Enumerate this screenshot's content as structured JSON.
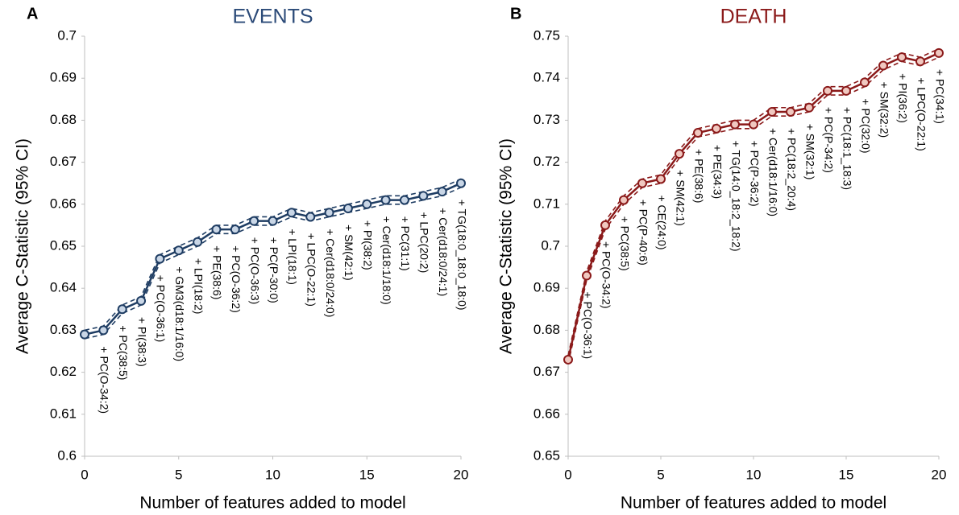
{
  "chart_data": [
    {
      "type": "line",
      "panel": "A",
      "title": "EVENTS",
      "title_color": "#2b4a78",
      "xlabel": "Number of features added to model",
      "ylabel": "Average C-Statistic (95% CI)",
      "x": [
        0,
        1,
        2,
        3,
        4,
        5,
        6,
        7,
        8,
        9,
        10,
        11,
        12,
        13,
        14,
        15,
        16,
        17,
        18,
        19,
        20
      ],
      "values": [
        0.629,
        0.63,
        0.635,
        0.637,
        0.647,
        0.649,
        0.651,
        0.654,
        0.654,
        0.656,
        0.656,
        0.658,
        0.657,
        0.658,
        0.659,
        0.66,
        0.661,
        0.661,
        0.662,
        0.663,
        0.665
      ],
      "ci_lower": [
        0.628,
        0.629,
        0.634,
        0.636,
        0.646,
        0.648,
        0.65,
        0.653,
        0.653,
        0.655,
        0.655,
        0.657,
        0.656,
        0.657,
        0.658,
        0.659,
        0.66,
        0.66,
        0.661,
        0.662,
        0.664
      ],
      "ci_upper": [
        0.63,
        0.631,
        0.636,
        0.638,
        0.648,
        0.65,
        0.652,
        0.655,
        0.655,
        0.657,
        0.657,
        0.659,
        0.658,
        0.659,
        0.66,
        0.661,
        0.662,
        0.662,
        0.663,
        0.664,
        0.666
      ],
      "point_labels": [
        null,
        "+ PC(O-34:2)",
        "+ PC(38:5)",
        "+ PI(38:3)",
        "+ PC(O-36:1)",
        "+ GM3(d18:1/16:0)",
        "+ LPI(18:2)",
        "+ PE(38:6)",
        "+ PC(O-36:2)",
        "+ PC(O-36:3)",
        "+ PC(P-30:0)",
        "+ LPI(18:1)",
        "+ LPC(O-22:1)",
        "+ Cer(d18:0/24:0)",
        "+ SM(42:1)",
        "+ PI(38:2)",
        "+ Cer(d18:1/18:0)",
        "+ PC(31:1)",
        "+ LPC(20:2)",
        "+ Cer(d18:0/24:1)",
        "+ TG(18:0_18:0_18:0)"
      ],
      "color": "#1f3d63",
      "marker_fill": "#c9d6e6",
      "xlim": [
        0,
        20
      ],
      "xticks": [
        0,
        5,
        10,
        15,
        20
      ],
      "ylim": [
        0.6,
        0.7
      ],
      "yticks": [
        0.6,
        0.61,
        0.62,
        0.63,
        0.64,
        0.65,
        0.66,
        0.67,
        0.68,
        0.69,
        0.7
      ]
    },
    {
      "type": "line",
      "panel": "B",
      "title": "DEATH",
      "title_color": "#8b1a1a",
      "xlabel": "Number of features added to model",
      "ylabel": "Average C-Statistic (95% CI)",
      "x": [
        0,
        1,
        2,
        3,
        4,
        5,
        6,
        7,
        8,
        9,
        10,
        11,
        12,
        13,
        14,
        15,
        16,
        17,
        18,
        19,
        20
      ],
      "values": [
        0.673,
        0.693,
        0.705,
        0.711,
        0.715,
        0.716,
        0.722,
        0.727,
        0.728,
        0.729,
        0.729,
        0.732,
        0.732,
        0.733,
        0.737,
        0.737,
        0.739,
        0.743,
        0.745,
        0.744,
        0.746
      ],
      "ci_lower": [
        0.672,
        0.692,
        0.704,
        0.71,
        0.714,
        0.715,
        0.721,
        0.726,
        0.727,
        0.728,
        0.728,
        0.731,
        0.731,
        0.732,
        0.736,
        0.736,
        0.738,
        0.742,
        0.744,
        0.743,
        0.745
      ],
      "ci_upper": [
        0.674,
        0.694,
        0.706,
        0.712,
        0.716,
        0.717,
        0.723,
        0.728,
        0.729,
        0.73,
        0.73,
        0.733,
        0.733,
        0.734,
        0.738,
        0.738,
        0.74,
        0.744,
        0.746,
        0.745,
        0.747
      ],
      "point_labels": [
        null,
        "+ PC(O-36:1)",
        "+ PC(O-34:2)",
        "+ PC(38:5)",
        "+ PC(P-40:6)",
        "+ CE(24:0)",
        "+ SM(42:1)",
        "+ PE(38:6)",
        "+ PE(34:3)",
        "+ TG(14:0_18:2_18:2)",
        "+ PC(P-36:2)",
        "+ Cer(d18:1/16:0)",
        "+ PC(18:2_20:4)",
        "+ SM(32:1)",
        "+ PC(P-34:2)",
        "+ PC(18:1_18:3)",
        "+ PC(32:0)",
        "+ SM(32:2)",
        "+ PI(36:2)",
        "+ LPC(O-22:1)",
        "+ PC(34:1)"
      ],
      "color": "#8b1a1a",
      "marker_fill": "#f0c8c0",
      "xlim": [
        0,
        20
      ],
      "xticks": [
        0,
        5,
        10,
        15,
        20
      ],
      "ylim": [
        0.65,
        0.75
      ],
      "yticks": [
        0.65,
        0.66,
        0.67,
        0.68,
        0.69,
        0.7,
        0.71,
        0.72,
        0.73,
        0.74,
        0.75
      ]
    }
  ]
}
